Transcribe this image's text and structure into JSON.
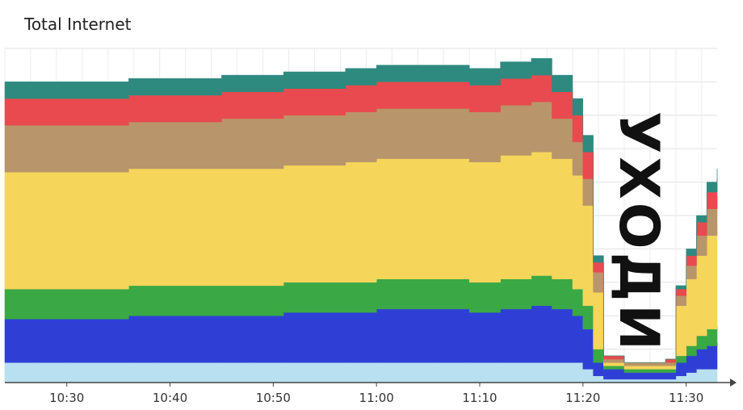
{
  "title": "Total Internet",
  "overlay_text": "УХОДИ",
  "chart_data": {
    "type": "area",
    "stacked": true,
    "title": "Total Internet",
    "xlabel": "",
    "ylabel": "",
    "x_ticks": [
      "10:30",
      "10:40",
      "10:50",
      "11:00",
      "11:10",
      "11:20",
      "11:30"
    ],
    "x_range": [
      "10:24",
      "11:33"
    ],
    "ylim": [
      0,
      100
    ],
    "grid": true,
    "x": [
      "10:24",
      "10:27",
      "10:30",
      "10:33",
      "10:36",
      "10:39",
      "10:42",
      "10:45",
      "10:48",
      "10:51",
      "10:54",
      "10:57",
      "11:00",
      "11:03",
      "11:06",
      "11:09",
      "11:12",
      "11:15",
      "11:17",
      "11:19",
      "11:20",
      "11:21",
      "11:22",
      "11:24",
      "11:26",
      "11:28",
      "11:29",
      "11:30",
      "11:31",
      "11:32",
      "11:33"
    ],
    "series": [
      {
        "color": "#b8e0f0",
        "values": [
          6,
          6,
          6,
          6,
          6,
          6,
          6,
          6,
          6,
          6,
          6,
          6,
          6,
          6,
          6,
          6,
          6,
          6,
          6,
          6,
          4,
          2,
          1,
          1,
          1,
          1,
          2,
          3,
          4,
          4,
          5
        ]
      },
      {
        "color": "#2f3fd6",
        "values": [
          13,
          13,
          13,
          13,
          14,
          14,
          14,
          14,
          14,
          15,
          15,
          15,
          16,
          16,
          16,
          15,
          16,
          17,
          16,
          14,
          12,
          4,
          3,
          2,
          2,
          2,
          4,
          5,
          6,
          7,
          7
        ]
      },
      {
        "color": "#3aa845",
        "values": [
          9,
          9,
          9,
          9,
          9,
          9,
          9,
          9,
          9,
          9,
          9,
          9,
          9,
          9,
          9,
          9,
          9,
          9,
          9,
          8,
          7,
          4,
          1,
          1,
          1,
          1,
          2,
          3,
          4,
          5,
          5
        ]
      },
      {
        "color": "#f5d55a",
        "values": [
          35,
          35,
          35,
          35,
          35,
          35,
          35,
          35,
          35,
          35,
          35,
          36,
          36,
          36,
          36,
          36,
          37,
          37,
          36,
          34,
          30,
          17,
          1,
          1,
          1,
          1,
          15,
          20,
          24,
          28,
          30
        ]
      },
      {
        "color": "#b8956a",
        "values": [
          14,
          14,
          14,
          14,
          14,
          14,
          14,
          15,
          15,
          15,
          15,
          15,
          15,
          15,
          15,
          15,
          15,
          15,
          12,
          10,
          8,
          6,
          1,
          1,
          1,
          1,
          3,
          4,
          6,
          8,
          9
        ]
      },
      {
        "color": "#e84a4f",
        "values": [
          8,
          8,
          8,
          8,
          8,
          8,
          8,
          8,
          8,
          8,
          8,
          8,
          8,
          8,
          8,
          8,
          8,
          8,
          8,
          8,
          8,
          3,
          1,
          0,
          0,
          1,
          2,
          3,
          4,
          5,
          5
        ]
      },
      {
        "color": "#2e8a7f",
        "values": [
          5,
          5,
          5,
          5,
          5,
          5,
          5,
          5,
          5,
          5,
          5,
          5,
          5,
          5,
          5,
          5,
          5,
          5,
          5,
          5,
          5,
          2,
          0,
          0,
          0,
          0,
          1,
          2,
          2,
          3,
          3
        ]
      }
    ]
  }
}
